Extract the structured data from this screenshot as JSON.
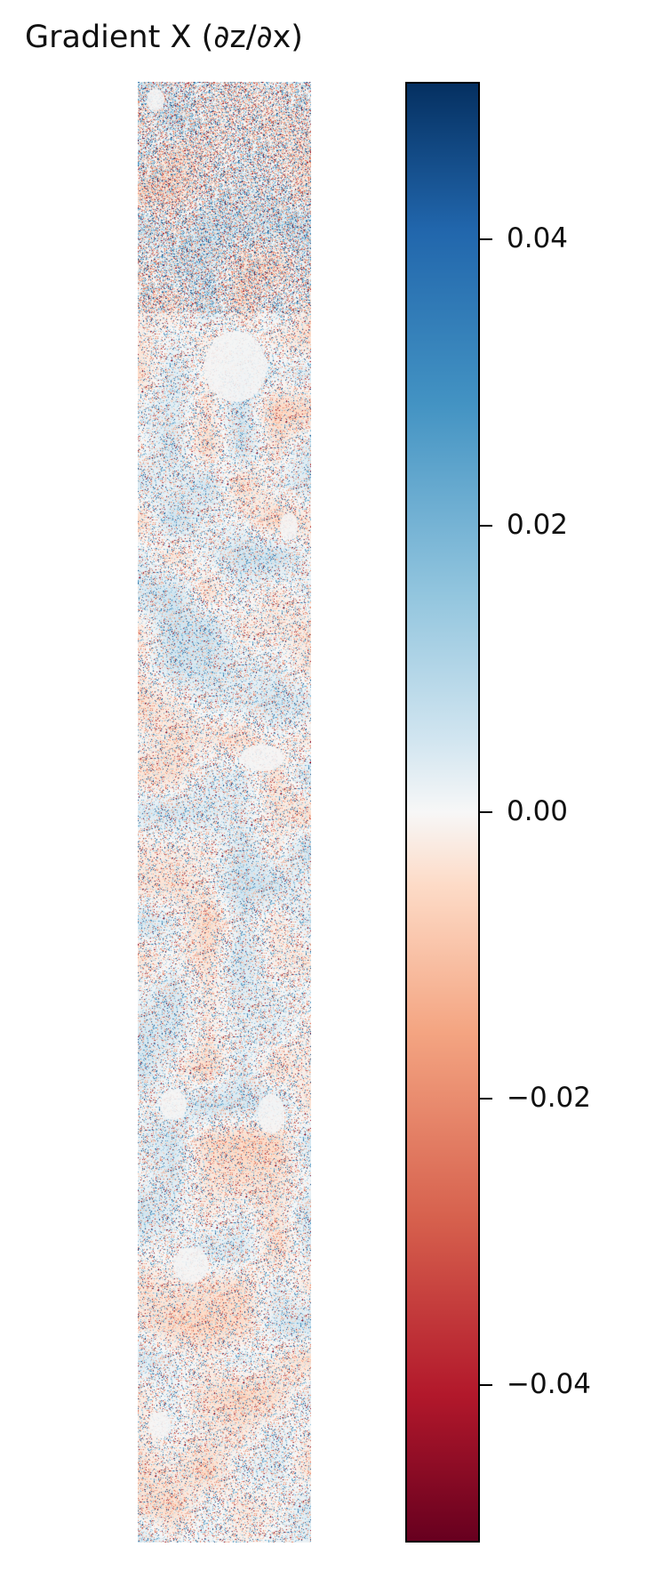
{
  "title": "Gradient X (∂z/∂x)",
  "chart_data": {
    "type": "heatmap",
    "title": "Gradient X (∂z/∂x)",
    "colormap": "RdBu",
    "colorbar": {
      "range": [
        -0.051,
        0.051
      ],
      "ticks": [
        0.04,
        0.02,
        0.0,
        -0.02,
        -0.04
      ],
      "tick_labels": [
        "0.04",
        "0.02",
        "0.00",
        "−0.02",
        "−0.04"
      ]
    },
    "colors": {
      "min": "#67001f",
      "mid": "#f7f7f7",
      "max": "#053061"
    },
    "axes_visible": false
  }
}
